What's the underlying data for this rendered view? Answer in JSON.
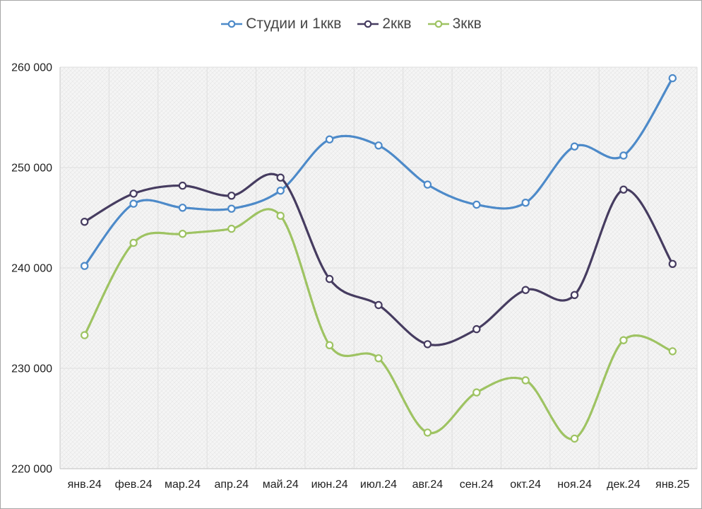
{
  "legend": {
    "items": [
      {
        "label": "Студии и 1ккв",
        "color": "#4d8ac9"
      },
      {
        "label": "2ккв",
        "color": "#463c60"
      },
      {
        "label": "3ккв",
        "color": "#9ec362"
      }
    ]
  },
  "chart_data": {
    "type": "line",
    "smooth": true,
    "grid": true,
    "legend_position": "top",
    "x": [
      "янв.24",
      "фев.24",
      "мар.24",
      "апр.24",
      "май.24",
      "июн.24",
      "июл.24",
      "авг.24",
      "сен.24",
      "окт.24",
      "ноя.24",
      "дек.24",
      "янв.25"
    ],
    "series": [
      {
        "name": "Студии и 1ккв",
        "color": "#4d8ac9",
        "values": [
          240200,
          246400,
          246000,
          245900,
          247700,
          252800,
          252200,
          248300,
          246300,
          246500,
          252100,
          251200,
          258900
        ]
      },
      {
        "name": "2ккв",
        "color": "#463c60",
        "values": [
          244600,
          247400,
          248200,
          247200,
          249000,
          238900,
          236300,
          232400,
          233900,
          237800,
          237300,
          247800,
          240400
        ]
      },
      {
        "name": "3ккв",
        "color": "#9ec362",
        "values": [
          233300,
          242500,
          243400,
          243900,
          245200,
          232300,
          231000,
          223600,
          227600,
          228800,
          223000,
          232800,
          231700
        ]
      }
    ],
    "ylim": [
      220000,
      260000
    ],
    "ytick_step": 10000,
    "ytick_labels": [
      "220 000",
      "230 000",
      "240 000",
      "250 000",
      "260 000"
    ],
    "xlabel": "",
    "ylabel": "",
    "title": ""
  },
  "style": {
    "grid_color": "#dedede",
    "axis_color": "#c9c9c9",
    "tick_color": "#1f1f1f",
    "plot_bg": "#f5f5f5",
    "hatch_color": "#e7e7e7",
    "marker_fill": "#ffffff"
  }
}
